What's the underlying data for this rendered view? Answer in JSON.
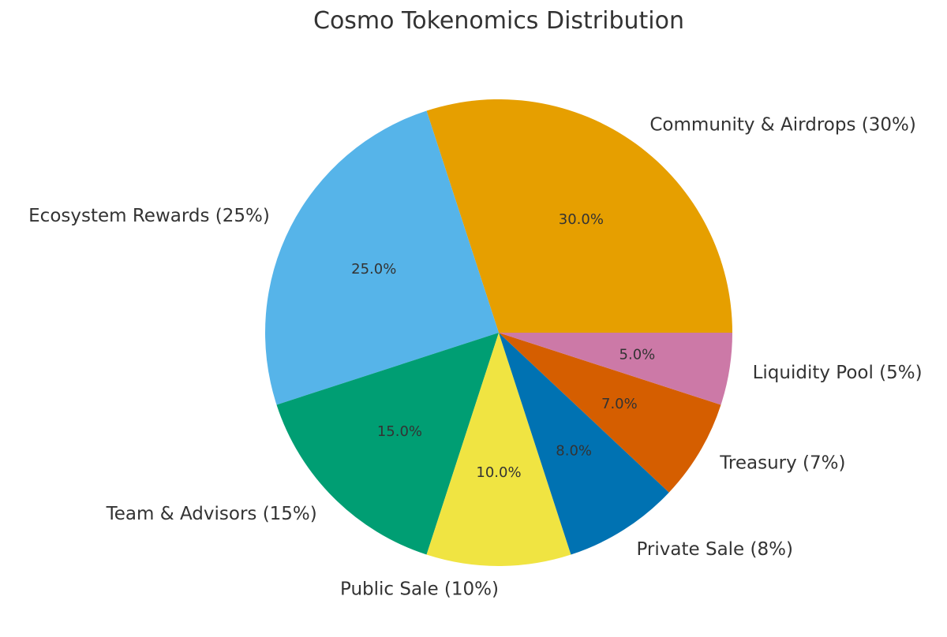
{
  "chart_data": {
    "type": "pie",
    "title": "Cosmo Tokenomics Distribution",
    "start_angle_deg": 0,
    "direction": "counterclockwise",
    "slices": [
      {
        "label": "Community & Airdrops (30%)",
        "value": 30,
        "pct_label": "30.0%",
        "color": "#E69F00"
      },
      {
        "label": "Ecosystem Rewards (25%)",
        "value": 25,
        "pct_label": "25.0%",
        "color": "#56B4E9"
      },
      {
        "label": "Team & Advisors (15%)",
        "value": 15,
        "pct_label": "15.0%",
        "color": "#009E73"
      },
      {
        "label": "Public Sale (10%)",
        "value": 10,
        "pct_label": "10.0%",
        "color": "#F0E442"
      },
      {
        "label": "Private Sale (8%)",
        "value": 8,
        "pct_label": "8.0%",
        "color": "#0072B2"
      },
      {
        "label": "Treasury (7%)",
        "value": 7,
        "pct_label": "7.0%",
        "color": "#D55E00"
      },
      {
        "label": "Liquidity Pool (5%)",
        "value": 5,
        "pct_label": "5.0%",
        "color": "#CC79A7"
      }
    ]
  }
}
